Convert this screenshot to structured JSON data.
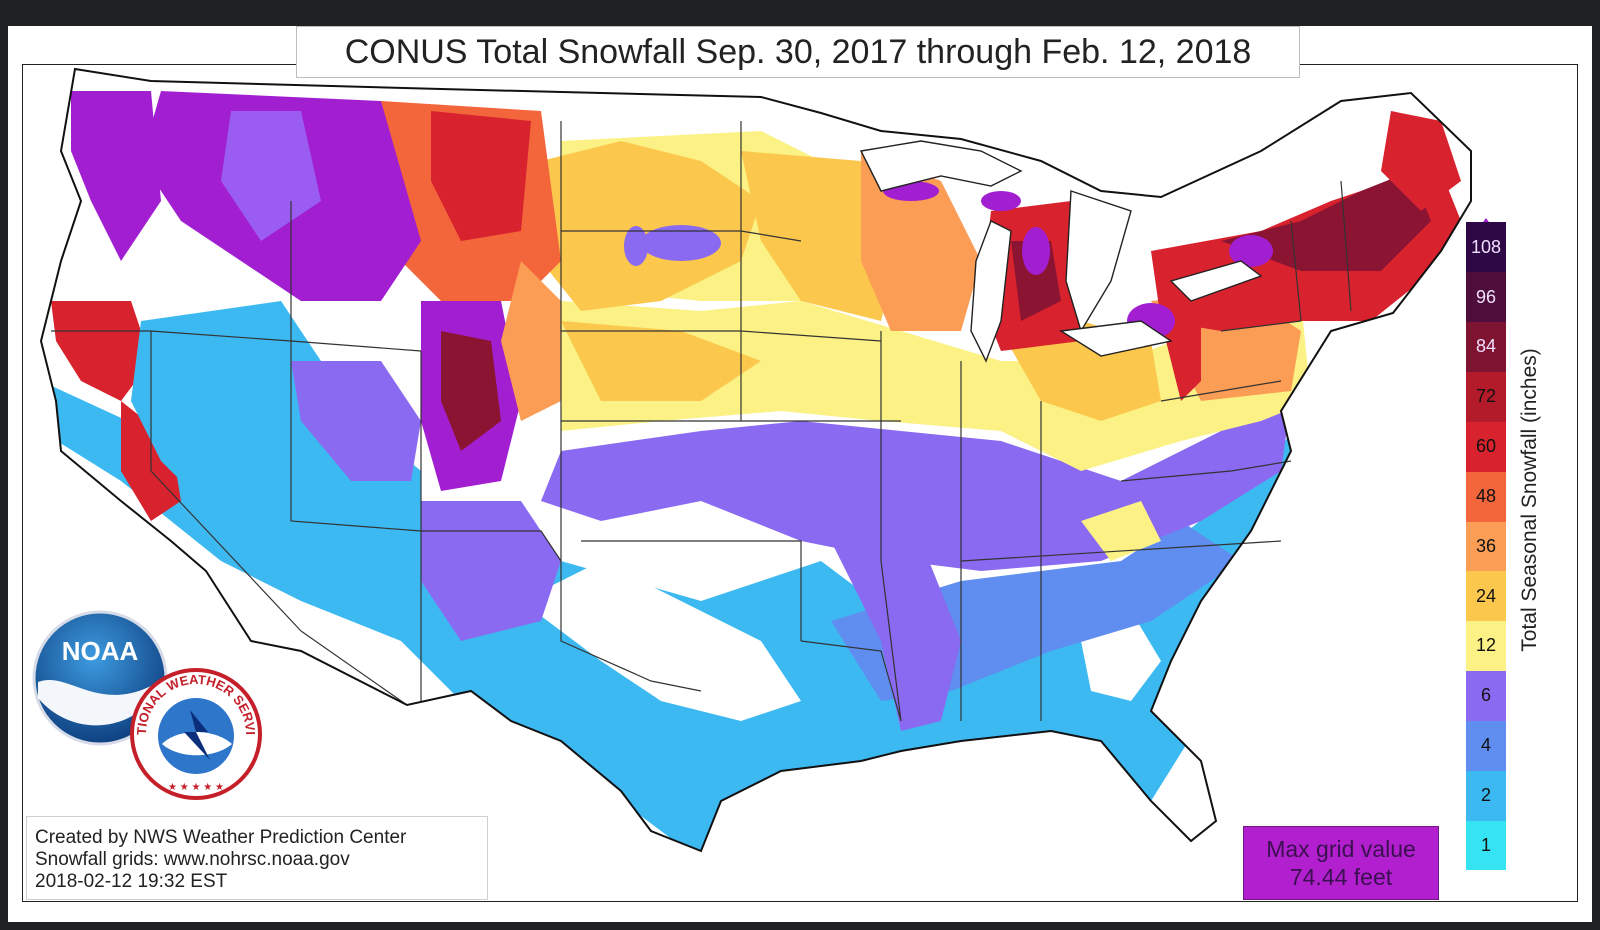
{
  "title": "CONUS Total Snowfall Sep. 30, 2017 through Feb. 12, 2018",
  "colorbar": {
    "label": "Total Seasonal Snowfall (inches)",
    "levels": [
      {
        "label": "1",
        "color": "#36e3f2"
      },
      {
        "label": "2",
        "color": "#3db9f2"
      },
      {
        "label": "4",
        "color": "#5f8ef0"
      },
      {
        "label": "6",
        "color": "#8a6af0"
      },
      {
        "label": "12",
        "color": "#fbf184"
      },
      {
        "label": "24",
        "color": "#fbc84d"
      },
      {
        "label": "36",
        "color": "#fb9d55"
      },
      {
        "label": "48",
        "color": "#f3653a"
      },
      {
        "label": "60",
        "color": "#d8222d"
      },
      {
        "label": "72",
        "color": "#b31a2a"
      },
      {
        "label": "84",
        "color": "#7f1332"
      },
      {
        "label": "96",
        "color": "#4e0d3a"
      },
      {
        "label": "108",
        "color": "#2e0844"
      }
    ],
    "extend_color": "#a21fd1"
  },
  "credits": {
    "line1": "Created by NWS Weather Prediction Center",
    "line2": "Snowfall grids: www.nohrsc.noaa.gov",
    "line3": "2018-02-12 19:32 EST"
  },
  "max_grid": {
    "line1": "Max grid value",
    "line2": "74.44 feet"
  },
  "logos": {
    "noaa_text": "NOAA",
    "nws_text": "NATIONAL WEATHER SERVICE"
  },
  "map_colors": {
    "magenta": "#a21fd1",
    "darkpurple": "#4e0d3a",
    "maroon": "#8b1432",
    "red": "#d8222d",
    "orangered": "#f3653a",
    "orange": "#fb9d55",
    "gold": "#fbc84d",
    "yellow": "#fbf184",
    "violet": "#8a6af0",
    "blue": "#5f8ef0",
    "lightblue": "#3db9f2",
    "cyan": "#36e3f2"
  }
}
